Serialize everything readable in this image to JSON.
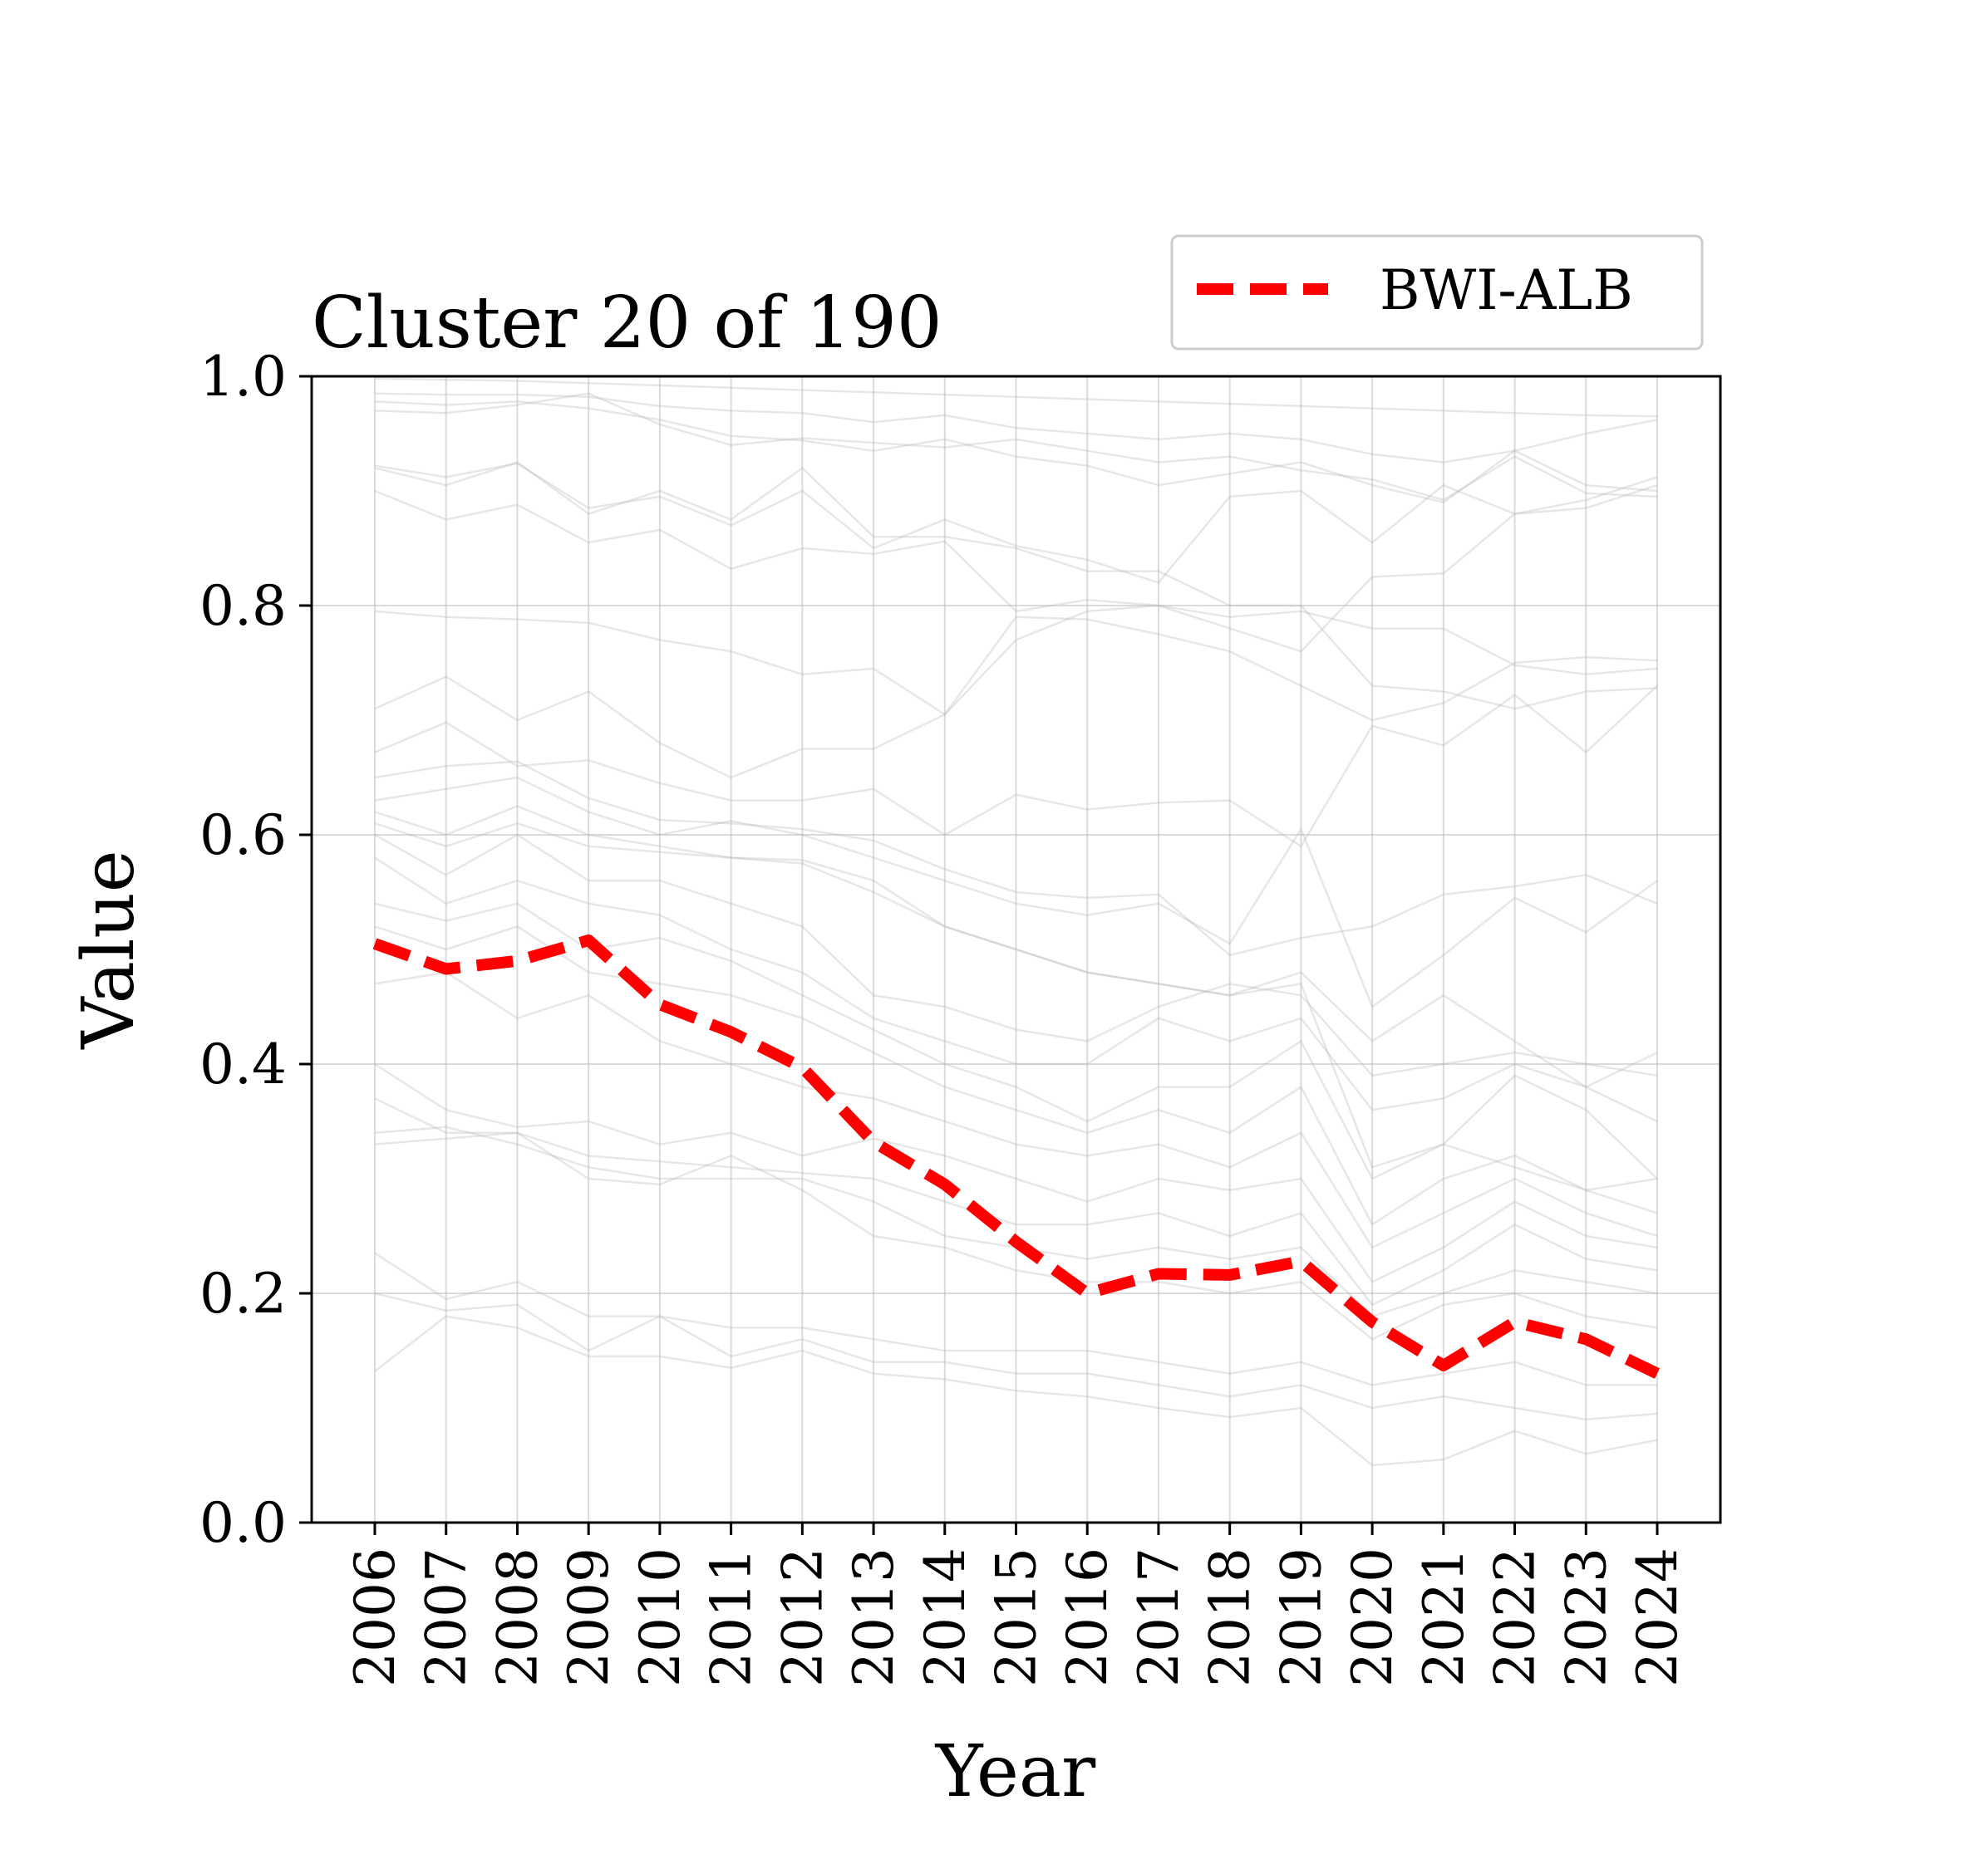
{
  "chart_data": {
    "type": "line",
    "title": "Cluster 20 of 190",
    "xlabel": "Year",
    "ylabel": "Value",
    "x": [
      2006,
      2007,
      2008,
      2009,
      2010,
      2011,
      2012,
      2013,
      2014,
      2015,
      2016,
      2017,
      2018,
      2019,
      2020,
      2021,
      2022,
      2023,
      2024
    ],
    "x_tick_labels": [
      "2006",
      "2007",
      "2008",
      "2009",
      "2010",
      "2011",
      "2012",
      "2013",
      "2014",
      "2015",
      "2016",
      "2017",
      "2018",
      "2019",
      "2020",
      "2021",
      "2022",
      "2023",
      "2024"
    ],
    "ylim": [
      0,
      1
    ],
    "y_ticks": [
      0.0,
      0.2,
      0.4,
      0.6,
      0.8,
      1.0
    ],
    "y_tick_labels": [
      "0.0",
      "0.2",
      "0.4",
      "0.6",
      "0.8",
      "1.0"
    ],
    "grid": true,
    "legend_position": "top-right",
    "highlight_series": {
      "name": "BWI-ALB",
      "color": "#ff0000",
      "style": "dashed",
      "values": [
        0.505,
        0.483,
        0.49,
        0.508,
        0.452,
        0.428,
        0.397,
        0.332,
        0.295,
        0.245,
        0.2,
        0.217,
        0.216,
        0.228,
        0.175,
        0.137,
        0.175,
        0.16,
        0.13
      ]
    },
    "background_series_color": "#bbbbbb",
    "background_series": [
      {
        "values": [
          0.998,
          0.997,
          0.996,
          0.994,
          0.992,
          0.99,
          0.988,
          0.986,
          0.984,
          0.982,
          0.98,
          0.978,
          0.976,
          0.974,
          0.972,
          0.97,
          0.968,
          0.966,
          0.965
        ]
      },
      {
        "values": [
          0.985,
          0.984,
          0.984,
          0.982,
          0.974,
          0.97,
          0.968,
          0.96,
          0.966,
          0.955,
          0.95,
          0.945,
          0.95,
          0.945,
          0.932,
          0.925,
          0.935,
          0.95,
          0.962
        ]
      },
      {
        "values": [
          0.978,
          0.975,
          0.978,
          0.972,
          0.962,
          0.948,
          0.944,
          0.935,
          0.945,
          0.93,
          0.922,
          0.905,
          0.915,
          0.925,
          0.905,
          0.89,
          0.935,
          0.905,
          0.9
        ]
      },
      {
        "values": [
          0.97,
          0.968,
          0.975,
          0.985,
          0.958,
          0.94,
          0.946,
          0.942,
          0.938,
          0.945,
          0.935,
          0.925,
          0.93,
          0.918,
          0.91,
          0.892,
          0.93,
          0.898,
          0.895
        ]
      },
      {
        "values": [
          0.922,
          0.912,
          0.924,
          0.885,
          0.895,
          0.87,
          0.9,
          0.85,
          0.875,
          0.852,
          0.84,
          0.82,
          0.895,
          0.9,
          0.855,
          0.905,
          0.88,
          0.892,
          0.912
        ]
      },
      {
        "values": [
          0.9,
          0.875,
          0.888,
          0.855,
          0.866,
          0.832,
          0.85,
          0.845,
          0.856,
          0.795,
          0.805,
          0.8,
          0.78,
          0.76,
          0.825,
          0.828,
          0.88,
          0.885,
          0.905
        ]
      },
      {
        "values": [
          0.795,
          0.79,
          0.788,
          0.785,
          0.77,
          0.76,
          0.74,
          0.745,
          0.705,
          0.79,
          0.788,
          0.775,
          0.76,
          0.73,
          0.7,
          0.715,
          0.75,
          0.755,
          0.752
        ]
      },
      {
        "values": [
          0.71,
          0.738,
          0.7,
          0.725,
          0.68,
          0.65,
          0.675,
          0.675,
          0.705,
          0.77,
          0.795,
          0.8,
          0.79,
          0.795,
          0.78,
          0.78,
          0.748,
          0.74,
          0.745
        ]
      },
      {
        "values": [
          0.672,
          0.698,
          0.66,
          0.665,
          0.645,
          0.63,
          0.63,
          0.64,
          0.6,
          0.635,
          0.622,
          0.628,
          0.63,
          0.59,
          0.695,
          0.678,
          0.722,
          0.672,
          0.73
        ]
      },
      {
        "values": [
          0.65,
          0.66,
          0.664,
          0.632,
          0.613,
          0.61,
          0.605,
          0.595,
          0.57,
          0.55,
          0.545,
          0.548,
          0.495,
          0.51,
          0.52,
          0.548,
          0.555,
          0.565,
          0.54
        ]
      },
      {
        "values": [
          0.63,
          0.64,
          0.65,
          0.62,
          0.6,
          0.612,
          0.6,
          0.58,
          0.56,
          0.54,
          0.53,
          0.54,
          0.505,
          0.605,
          0.45,
          0.495,
          0.545,
          0.515,
          0.56
        ]
      },
      {
        "values": [
          0.62,
          0.6,
          0.625,
          0.6,
          0.59,
          0.58,
          0.578,
          0.56,
          0.52,
          0.5,
          0.48,
          0.47,
          0.46,
          0.48,
          0.42,
          0.46,
          0.42,
          0.38,
          0.41
        ]
      },
      {
        "values": [
          0.6,
          0.565,
          0.6,
          0.56,
          0.56,
          0.54,
          0.52,
          0.46,
          0.45,
          0.43,
          0.42,
          0.45,
          0.47,
          0.46,
          0.39,
          0.4,
          0.41,
          0.4,
          0.39
        ]
      },
      {
        "values": [
          0.58,
          0.54,
          0.56,
          0.54,
          0.53,
          0.5,
          0.48,
          0.44,
          0.42,
          0.4,
          0.4,
          0.44,
          0.42,
          0.44,
          0.36,
          0.37,
          0.4,
          0.38,
          0.35
        ]
      },
      {
        "values": [
          0.54,
          0.525,
          0.54,
          0.5,
          0.51,
          0.49,
          0.46,
          0.43,
          0.4,
          0.38,
          0.35,
          0.38,
          0.38,
          0.42,
          0.3,
          0.33,
          0.39,
          0.36,
          0.3
        ]
      },
      {
        "values": [
          0.52,
          0.5,
          0.52,
          0.48,
          0.47,
          0.46,
          0.44,
          0.41,
          0.38,
          0.36,
          0.34,
          0.36,
          0.34,
          0.38,
          0.26,
          0.3,
          0.32,
          0.29,
          0.27
        ]
      },
      {
        "values": [
          0.47,
          0.48,
          0.44,
          0.46,
          0.42,
          0.4,
          0.38,
          0.37,
          0.35,
          0.33,
          0.32,
          0.33,
          0.31,
          0.34,
          0.24,
          0.27,
          0.3,
          0.27,
          0.25
        ]
      },
      {
        "values": [
          0.4,
          0.36,
          0.345,
          0.35,
          0.33,
          0.34,
          0.32,
          0.335,
          0.32,
          0.3,
          0.28,
          0.3,
          0.29,
          0.3,
          0.21,
          0.24,
          0.28,
          0.25,
          0.24
        ]
      },
      {
        "values": [
          0.37,
          0.34,
          0.34,
          0.32,
          0.315,
          0.31,
          0.305,
          0.3,
          0.28,
          0.26,
          0.26,
          0.27,
          0.25,
          0.27,
          0.19,
          0.22,
          0.26,
          0.23,
          0.22
        ]
      },
      {
        "values": [
          0.34,
          0.345,
          0.33,
          0.31,
          0.3,
          0.3,
          0.3,
          0.28,
          0.25,
          0.24,
          0.23,
          0.24,
          0.23,
          0.24,
          0.18,
          0.2,
          0.22,
          0.21,
          0.2
        ]
      },
      {
        "values": [
          0.33,
          0.335,
          0.34,
          0.3,
          0.295,
          0.32,
          0.29,
          0.25,
          0.24,
          0.22,
          0.21,
          0.21,
          0.2,
          0.21,
          0.16,
          0.19,
          0.2,
          0.18,
          0.17
        ]
      },
      {
        "values": [
          0.235,
          0.195,
          0.21,
          0.18,
          0.18,
          0.17,
          0.17,
          0.16,
          0.15,
          0.15,
          0.15,
          0.14,
          0.13,
          0.14,
          0.12,
          0.13,
          0.14,
          0.12,
          0.12
        ]
      },
      {
        "values": [
          0.2,
          0.185,
          0.19,
          0.15,
          0.18,
          0.145,
          0.16,
          0.14,
          0.14,
          0.13,
          0.13,
          0.12,
          0.11,
          0.12,
          0.1,
          0.11,
          0.1,
          0.09,
          0.095
        ]
      },
      {
        "values": [
          0.132,
          0.18,
          0.17,
          0.145,
          0.145,
          0.135,
          0.15,
          0.13,
          0.125,
          0.115,
          0.11,
          0.1,
          0.092,
          0.1,
          0.05,
          0.055,
          0.08,
          0.06,
          0.072
        ]
      },
      {
        "values": [
          0.92,
          0.905,
          0.925,
          0.88,
          0.9,
          0.875,
          0.92,
          0.86,
          0.86,
          0.85,
          0.83,
          0.83,
          0.8,
          0.8,
          0.73,
          0.725,
          0.71,
          0.725,
          0.728
        ]
      },
      {
        "values": [
          0.61,
          0.59,
          0.61,
          0.59,
          0.585,
          0.58,
          0.575,
          0.55,
          0.52,
          0.5,
          0.48,
          0.47,
          0.46,
          0.47,
          0.31,
          0.33,
          0.31,
          0.29,
          0.3
        ]
      }
    ]
  }
}
